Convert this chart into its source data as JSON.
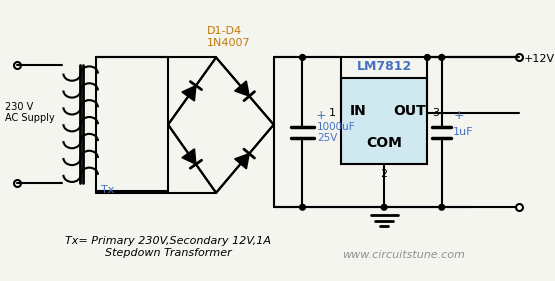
{
  "bg_color": "#f5f5f0",
  "line_color": "#000000",
  "text_color_blue": "#4472c4",
  "text_color_orange": "#c0780a",
  "text_color_gray": "#909090",
  "lm_box_color": "#d0e8f0",
  "title_text": "Tx= Primary 230V,Secondary 12V,1A\nStepdown Transformer",
  "watermark": "www.circuitstune.com",
  "ac_label": "230 V\nAC Supply",
  "tx_label": "Tx",
  "d_label": "D1-D4\n1N4007",
  "lm_label": "LM7812",
  "cap1_label": "1000uF\n25V",
  "cap2_label": "1uF",
  "out_label": "+12V",
  "in_text": "IN",
  "out_text": "OUT",
  "com_text": "COM",
  "pin1": "1",
  "pin2": "2",
  "pin3": "3",
  "plus1": "+",
  "plus2": "+"
}
